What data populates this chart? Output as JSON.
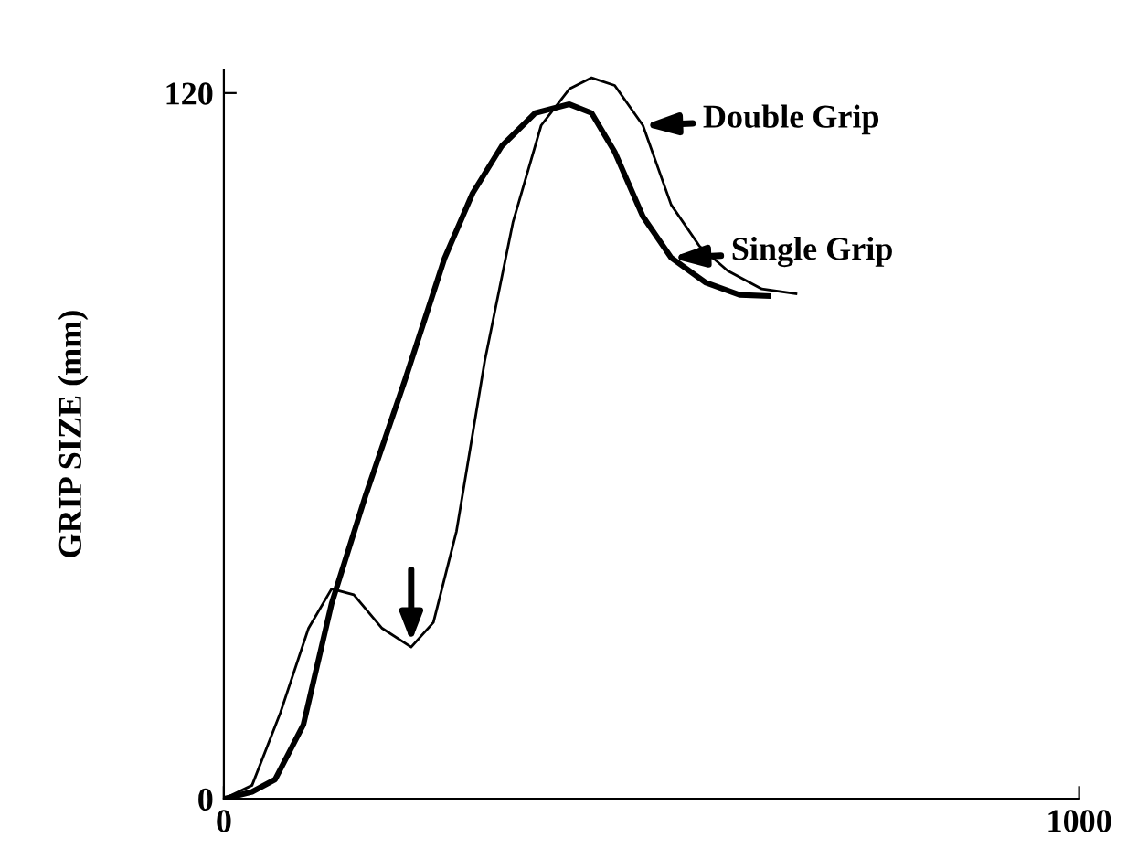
{
  "chart_data": {
    "type": "line",
    "ylabel": "GRIP SIZE (mm)",
    "xlim": [
      0,
      1000
    ],
    "ylim": [
      0,
      124
    ],
    "xticks": [
      0,
      1000
    ],
    "yticks": [
      0,
      120
    ],
    "grid": false,
    "legend": "right",
    "marker": "none",
    "line_style": "solid",
    "series": [
      {
        "name": "Single Grip",
        "color": "#000000",
        "x": [
          0,
          33,
          60,
          93,
          126,
          166,
          212,
          258,
          291,
          325,
          364,
          404,
          430,
          457,
          490,
          523,
          563,
          603,
          636
        ],
        "values": [
          0,
          1.2,
          3.3,
          12.6,
          33.2,
          51.7,
          71.3,
          91.9,
          103,
          111,
          116.6,
          118.1,
          116.6,
          110,
          99,
          92,
          87.8,
          85.7,
          85.5
        ]
      },
      {
        "name": "Double Grip",
        "color": "#000000",
        "x": [
          0,
          33,
          66,
          99,
          126,
          152,
          185,
          219,
          245,
          272,
          305,
          338,
          371,
          404,
          430,
          457,
          490,
          523,
          556,
          589,
          629,
          669
        ],
        "values": [
          0,
          2.3,
          14.6,
          29,
          35.7,
          34.7,
          29,
          25.8,
          30,
          45.5,
          74.4,
          98,
          114.5,
          120.7,
          122.6,
          121.3,
          114.5,
          101,
          94,
          89.8,
          86.7,
          85.9
        ]
      }
    ]
  }
}
